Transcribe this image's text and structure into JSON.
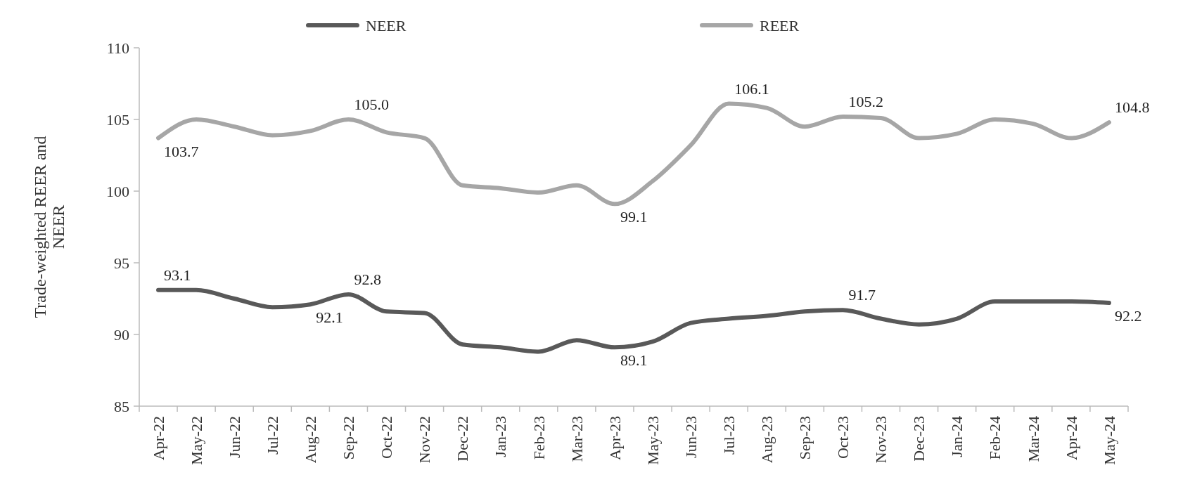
{
  "chart_data": {
    "type": "line",
    "ylabel": "Trade-weighted REER and NEER",
    "categories": [
      "Apr-22",
      "May-22",
      "Jun-22",
      "Jul-22",
      "Aug-22",
      "Sep-22",
      "Oct-22",
      "Nov-22",
      "Dec-22",
      "Jan-23",
      "Feb-23",
      "Mar-23",
      "Apr-23",
      "May-23",
      "Jun-23",
      "Jul-23",
      "Aug-23",
      "Sep-23",
      "Oct-23",
      "Nov-23",
      "Dec-23",
      "Jan-24",
      "Feb-24",
      "Mar-24",
      "Apr-24",
      "May-24"
    ],
    "series": [
      {
        "name": "NEER",
        "color": "#595959",
        "values": [
          93.1,
          93.1,
          92.5,
          91.9,
          92.1,
          92.8,
          91.6,
          91.5,
          89.3,
          89.1,
          88.8,
          89.6,
          89.1,
          89.5,
          90.8,
          91.1,
          91.3,
          91.6,
          91.7,
          91.1,
          90.7,
          91.1,
          92.3,
          92.3,
          92.3,
          92.2
        ],
        "value_labels": [
          "93.1",
          null,
          null,
          null,
          "92.1",
          "92.8",
          null,
          null,
          null,
          null,
          null,
          null,
          "89.1",
          null,
          null,
          null,
          null,
          null,
          "91.7",
          null,
          null,
          null,
          null,
          null,
          null,
          "92.2"
        ]
      },
      {
        "name": "REER",
        "color": "#a6a6a6",
        "values": [
          103.7,
          105.0,
          104.5,
          103.9,
          104.2,
          105.0,
          104.1,
          103.7,
          100.4,
          100.2,
          99.9,
          100.4,
          99.1,
          100.7,
          103.2,
          106.1,
          105.8,
          104.5,
          105.2,
          105.1,
          103.7,
          104.0,
          105.0,
          104.7,
          103.7,
          104.8
        ],
        "value_labels": [
          "103.7",
          null,
          null,
          null,
          null,
          "105.0",
          null,
          null,
          null,
          null,
          null,
          null,
          "99.1",
          null,
          null,
          "106.1",
          null,
          null,
          "105.2",
          null,
          null,
          null,
          null,
          null,
          null,
          "104.8"
        ]
      }
    ],
    "ylim": [
      85,
      110
    ],
    "yticks": [
      85,
      90,
      95,
      100,
      105,
      110
    ],
    "legend": "top",
    "line_style": "solid",
    "marker": "none"
  }
}
